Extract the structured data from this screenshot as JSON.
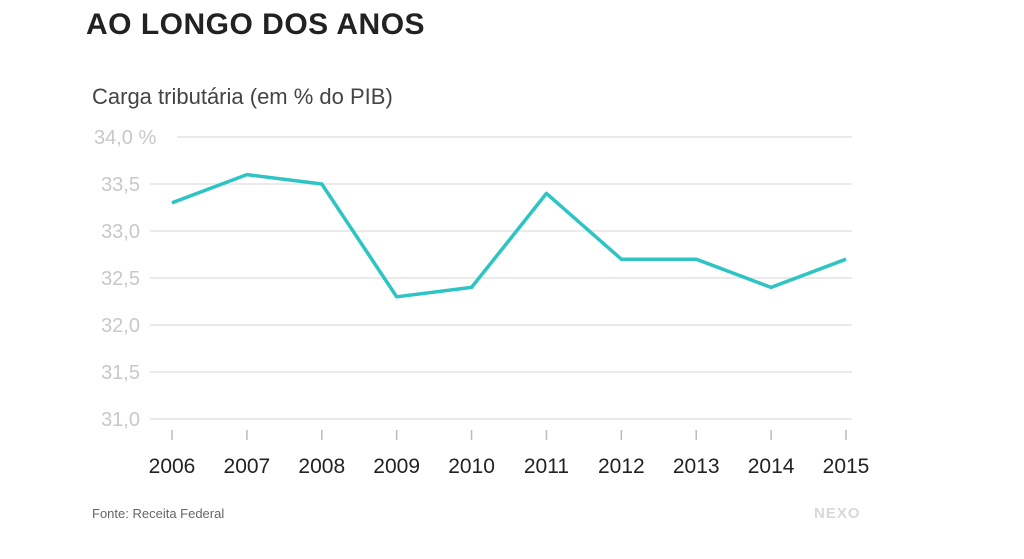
{
  "chart_data": {
    "type": "line",
    "title": "AO LONGO DOS ANOS",
    "ylabel": "Carga tributária (em % do PIB)",
    "categories": [
      "2006",
      "2007",
      "2008",
      "2009",
      "2010",
      "2011",
      "2012",
      "2013",
      "2014",
      "2015"
    ],
    "values": [
      33.3,
      33.6,
      33.5,
      32.3,
      32.4,
      33.4,
      32.7,
      32.7,
      32.4,
      32.7
    ],
    "yticks": [
      "31,0",
      "31,5",
      "32,0",
      "32,5",
      "33,0",
      "33,5",
      "34,0 %"
    ],
    "ylim": [
      31.0,
      34.0
    ],
    "grid": true,
    "line_color": "#2ec4c4",
    "source": "Fonte: Receita Federal",
    "logo": "NEXO"
  }
}
